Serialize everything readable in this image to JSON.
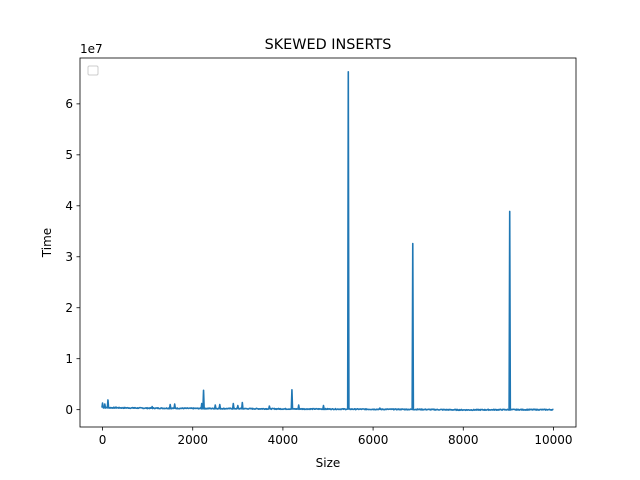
{
  "chart_data": {
    "type": "line",
    "title": "SKEWED INSERTS",
    "xlabel": "Size",
    "ylabel": "Time",
    "y_offset_label": "1e7",
    "xlim": [
      -500,
      10500
    ],
    "ylim": [
      -3400000,
      69000000
    ],
    "x_ticks": [
      0,
      2000,
      4000,
      6000,
      8000,
      10000
    ],
    "x_tick_labels": [
      "0",
      "2000",
      "4000",
      "6000",
      "8000",
      "10000"
    ],
    "y_ticks": [
      0,
      10000000,
      20000000,
      30000000,
      40000000,
      50000000,
      60000000
    ],
    "y_tick_labels": [
      "0",
      "1",
      "2",
      "3",
      "4",
      "5",
      "6"
    ],
    "grid": false,
    "legend": {
      "placement": "upper-left",
      "entries": []
    },
    "line_color": "#1f77b4",
    "baseline": [
      {
        "x": 0,
        "y": 400000
      },
      {
        "x": 1000,
        "y": 300000
      },
      {
        "x": 2000,
        "y": 250000
      },
      {
        "x": 3000,
        "y": 200000
      },
      {
        "x": 4000,
        "y": 150000
      },
      {
        "x": 5000,
        "y": 120000
      },
      {
        "x": 6000,
        "y": 80000
      },
      {
        "x": 7000,
        "y": 50000
      },
      {
        "x": 8000,
        "y": -50000
      },
      {
        "x": 9000,
        "y": 0
      },
      {
        "x": 10000,
        "y": 0
      }
    ],
    "spikes": [
      {
        "x": 0,
        "y": 1300000
      },
      {
        "x": 50,
        "y": 1100000
      },
      {
        "x": 120,
        "y": 1900000
      },
      {
        "x": 300,
        "y": 500000
      },
      {
        "x": 700,
        "y": 400000
      },
      {
        "x": 1100,
        "y": 600000
      },
      {
        "x": 1500,
        "y": 1000000
      },
      {
        "x": 1600,
        "y": 1100000
      },
      {
        "x": 2200,
        "y": 1200000
      },
      {
        "x": 2240,
        "y": 3800000
      },
      {
        "x": 2500,
        "y": 900000
      },
      {
        "x": 2600,
        "y": 1000000
      },
      {
        "x": 2900,
        "y": 1200000
      },
      {
        "x": 3000,
        "y": 800000
      },
      {
        "x": 3100,
        "y": 1400000
      },
      {
        "x": 3700,
        "y": 700000
      },
      {
        "x": 4200,
        "y": 3900000
      },
      {
        "x": 4350,
        "y": 900000
      },
      {
        "x": 4900,
        "y": 800000
      },
      {
        "x": 5450,
        "y": 66300000
      },
      {
        "x": 6150,
        "y": 300000
      },
      {
        "x": 6880,
        "y": 32600000
      },
      {
        "x": 9030,
        "y": 38900000
      }
    ]
  }
}
